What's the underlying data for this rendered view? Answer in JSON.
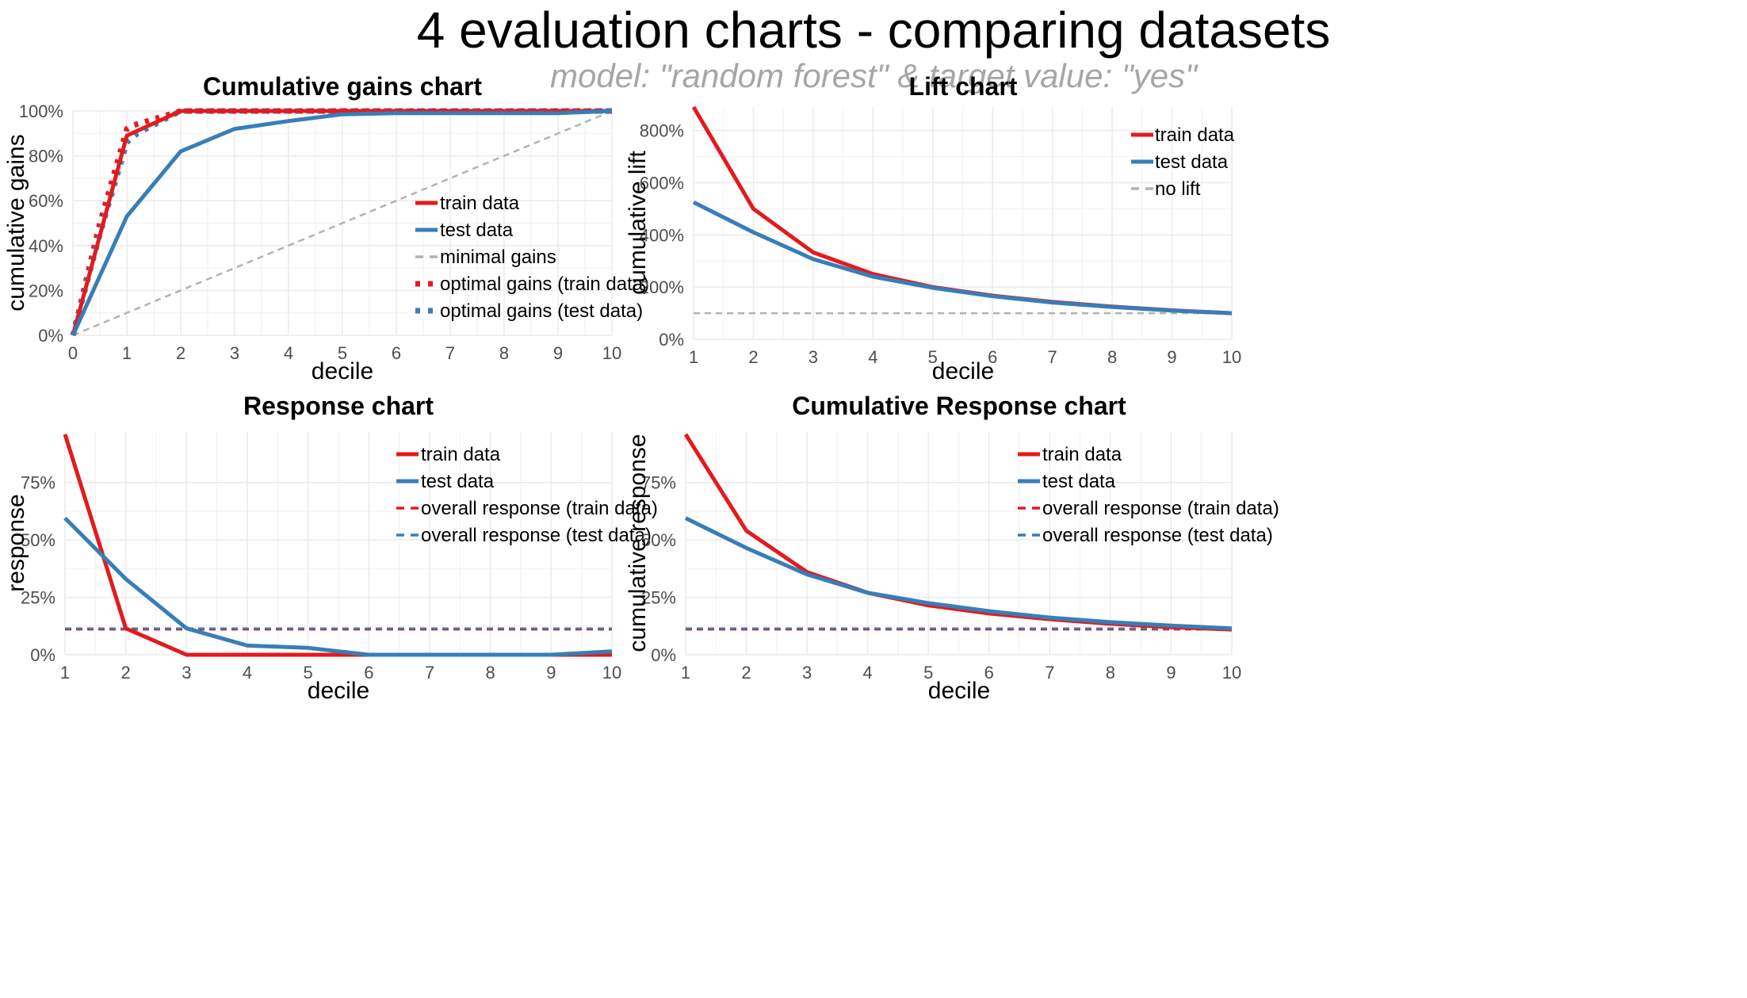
{
  "title": "4 evaluation charts - comparing datasets",
  "subtitle": "model: \"random forest\"  &  target value: \"yes\"",
  "colors": {
    "train": "#e41a1c",
    "test": "#377eb8",
    "reference": "#b3b3b3",
    "grid": "#ebebeb"
  },
  "chart_data": [
    {
      "type": "line",
      "title": "Cumulative gains chart",
      "xlabel": "decile",
      "ylabel": "cumulative gains",
      "xlim": [
        0,
        10
      ],
      "ylim": [
        0,
        1
      ],
      "x_ticks": [
        0,
        1,
        2,
        3,
        4,
        5,
        6,
        7,
        8,
        9,
        10
      ],
      "y_ticks": [
        0,
        0.2,
        0.4,
        0.6,
        0.8,
        1.0
      ],
      "y_tick_labels": [
        "0%",
        "20%",
        "40%",
        "60%",
        "80%",
        "100%"
      ],
      "x": [
        0,
        1,
        2,
        3,
        4,
        5,
        6,
        7,
        8,
        9,
        10
      ],
      "series": [
        {
          "name": "train data",
          "color": "train",
          "style": "solid",
          "values": [
            0,
            0.89,
            1.0,
            1.0,
            1.0,
            1.0,
            1.0,
            1.0,
            1.0,
            1.0,
            1.0
          ]
        },
        {
          "name": "test data",
          "color": "test",
          "style": "solid",
          "values": [
            0,
            0.53,
            0.82,
            0.92,
            0.955,
            0.985,
            0.99,
            0.99,
            0.99,
            0.99,
            1.0
          ]
        },
        {
          "name": "minimal gains",
          "color": "reference",
          "style": "dashed",
          "values": [
            0,
            0.1,
            0.2,
            0.3,
            0.4,
            0.5,
            0.6,
            0.7,
            0.8,
            0.9,
            1.0
          ]
        },
        {
          "name": "optimal gains (train data)",
          "color": "train",
          "style": "dotted",
          "x": [
            0,
            0.5,
            1,
            1.1,
            2,
            10
          ],
          "values": [
            0,
            0.5,
            0.92,
            0.935,
            1.0,
            1.0
          ]
        },
        {
          "name": "optimal gains (test data)",
          "color": "test",
          "style": "dotted",
          "x": [
            0,
            0.5,
            1,
            1.2,
            2,
            10
          ],
          "values": [
            0,
            0.45,
            0.86,
            0.9,
            1.0,
            1.0
          ]
        }
      ],
      "legend": {
        "position": "center-right"
      }
    },
    {
      "type": "line",
      "title": "Lift chart",
      "xlabel": "decile",
      "ylabel": "cumulative lift",
      "xlim": [
        1,
        10
      ],
      "ylim": [
        0,
        8.9
      ],
      "x_ticks": [
        1,
        2,
        3,
        4,
        5,
        6,
        7,
        8,
        9,
        10
      ],
      "y_ticks": [
        0,
        2,
        4,
        6,
        8
      ],
      "y_tick_labels": [
        "0%",
        "200%",
        "400%",
        "600%",
        "800%"
      ],
      "x": [
        1,
        2,
        3,
        4,
        5,
        6,
        7,
        8,
        9,
        10
      ],
      "series": [
        {
          "name": "train data",
          "color": "train",
          "style": "solid",
          "values": [
            8.9,
            5.0,
            3.33,
            2.5,
            2.0,
            1.67,
            1.43,
            1.25,
            1.11,
            1.0
          ]
        },
        {
          "name": "test data",
          "color": "test",
          "style": "solid",
          "values": [
            5.25,
            4.1,
            3.07,
            2.4,
            1.97,
            1.65,
            1.41,
            1.24,
            1.1,
            1.0
          ]
        },
        {
          "name": "no lift",
          "color": "reference",
          "style": "dashed",
          "values": [
            1,
            1,
            1,
            1,
            1,
            1,
            1,
            1,
            1,
            1
          ]
        }
      ],
      "legend": {
        "position": "top-right"
      }
    },
    {
      "type": "line",
      "title": "Response chart",
      "xlabel": "decile",
      "ylabel": "response",
      "xlim": [
        1,
        10
      ],
      "ylim": [
        0,
        0.97
      ],
      "x_ticks": [
        1,
        2,
        3,
        4,
        5,
        6,
        7,
        8,
        9,
        10
      ],
      "y_ticks": [
        0,
        0.25,
        0.5,
        0.75
      ],
      "y_tick_labels": [
        "0%",
        "25%",
        "50%",
        "75%"
      ],
      "x": [
        1,
        2,
        3,
        4,
        5,
        6,
        7,
        8,
        9,
        10
      ],
      "series": [
        {
          "name": "train data",
          "color": "train",
          "style": "solid",
          "values": [
            0.96,
            0.115,
            0.0,
            0.0,
            0.0,
            0.0,
            0.0,
            0.0,
            0.0,
            0.0
          ]
        },
        {
          "name": "test data",
          "color": "test",
          "style": "solid",
          "values": [
            0.595,
            0.33,
            0.115,
            0.04,
            0.03,
            0.0,
            0.0,
            0.0,
            0.0,
            0.015
          ]
        },
        {
          "name": "overall response (train data)",
          "color": "train",
          "style": "dashed",
          "values": [
            0.11,
            0.11,
            0.11,
            0.11,
            0.11,
            0.11,
            0.11,
            0.11,
            0.11,
            0.11
          ]
        },
        {
          "name": "overall response (test data)",
          "color": "test",
          "style": "dashed",
          "values": [
            0.115,
            0.115,
            0.115,
            0.115,
            0.115,
            0.115,
            0.115,
            0.115,
            0.115,
            0.115
          ]
        }
      ],
      "legend": {
        "position": "top-right"
      }
    },
    {
      "type": "line",
      "title": "Cumulative Response chart",
      "xlabel": "decile",
      "ylabel": "cumulative response",
      "xlim": [
        1,
        10
      ],
      "ylim": [
        0,
        0.97
      ],
      "x_ticks": [
        1,
        2,
        3,
        4,
        5,
        6,
        7,
        8,
        9,
        10
      ],
      "y_ticks": [
        0,
        0.25,
        0.5,
        0.75
      ],
      "y_tick_labels": [
        "0%",
        "25%",
        "50%",
        "75%"
      ],
      "x": [
        1,
        2,
        3,
        4,
        5,
        6,
        7,
        8,
        9,
        10
      ],
      "series": [
        {
          "name": "train data",
          "color": "train",
          "style": "solid",
          "values": [
            0.96,
            0.54,
            0.36,
            0.27,
            0.215,
            0.18,
            0.155,
            0.135,
            0.12,
            0.11
          ]
        },
        {
          "name": "test data",
          "color": "test",
          "style": "solid",
          "values": [
            0.595,
            0.465,
            0.35,
            0.27,
            0.225,
            0.19,
            0.162,
            0.142,
            0.127,
            0.115
          ]
        },
        {
          "name": "overall response (train data)",
          "color": "train",
          "style": "dashed",
          "values": [
            0.11,
            0.11,
            0.11,
            0.11,
            0.11,
            0.11,
            0.11,
            0.11,
            0.11,
            0.11
          ]
        },
        {
          "name": "overall response (test data)",
          "color": "test",
          "style": "dashed",
          "values": [
            0.115,
            0.115,
            0.115,
            0.115,
            0.115,
            0.115,
            0.115,
            0.115,
            0.115,
            0.115
          ]
        }
      ],
      "legend": {
        "position": "top-right"
      }
    }
  ]
}
